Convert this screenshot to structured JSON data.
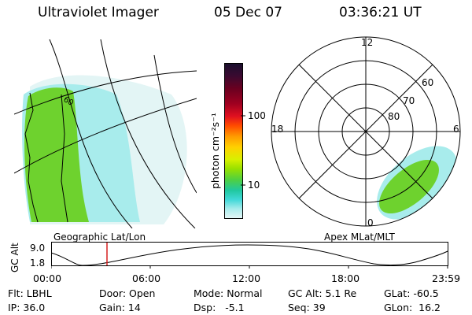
{
  "header": {
    "instrument": "Ultraviolet Imager",
    "date": "05 Dec 07",
    "time": "03:36:21 UT"
  },
  "left_panel": {
    "caption": "Geographic Lat/Lon",
    "grid_label": "60"
  },
  "colorbar": {
    "unit": "photon cm⁻²s⁻¹",
    "ticks": [
      "100",
      "10"
    ],
    "colors": [
      "#1a0f2e",
      "#3b0a30",
      "#6a0020",
      "#a00020",
      "#e01020",
      "#ff4a00",
      "#ff9a00",
      "#ffd000",
      "#d8f000",
      "#98e000",
      "#50d040",
      "#20c8a0",
      "#40d8d8",
      "#a8ecec",
      "#e4f6f6"
    ]
  },
  "right_panel": {
    "caption": "Apex MLat/MLT",
    "mlt_labels": {
      "top": "12",
      "left": "18",
      "right": "6",
      "bottom": "0"
    },
    "mlat_labels": [
      "60",
      "70",
      "80"
    ]
  },
  "altitude_plot": {
    "ylabel": "GC Alt",
    "yticks": [
      "9.0",
      "1.8"
    ],
    "xticks": [
      "00:00",
      "06:00",
      "12:00",
      "18:00",
      "23:59"
    ]
  },
  "info": {
    "row1": [
      "Flt: LBHL",
      "Door: Open",
      "Mode: Normal",
      "GC Alt: 5.1 Re",
      "GLat: -60.5"
    ],
    "row2": [
      "IP: 36.0",
      "Gain: 14",
      "Dsp:   -5.1",
      "Seq: 39",
      "GLon:  16.2"
    ]
  },
  "colors": {
    "aurora_green": "#6ed22e",
    "aurora_cyan": "#9fe8e8",
    "marker": "#d62020"
  }
}
